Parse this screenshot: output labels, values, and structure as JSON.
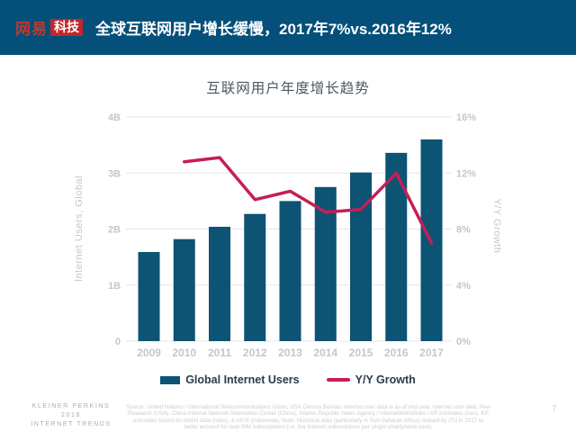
{
  "header": {
    "logo_brand": "网易",
    "logo_badge": "科技",
    "title": "全球互联网用户增长缓慢，2017年7%vs.2016年12%"
  },
  "chart_data": {
    "type": "bar",
    "title": "互联网用户年度增长趋势",
    "categories": [
      "2009",
      "2010",
      "2011",
      "2012",
      "2013",
      "2014",
      "2015",
      "2016",
      "2017"
    ],
    "series": [
      {
        "name": "Global Internet Users",
        "type": "bar",
        "axis": "left",
        "color": "#0d5374",
        "values": [
          1.59,
          1.82,
          2.04,
          2.27,
          2.5,
          2.75,
          3.01,
          3.36,
          3.6
        ]
      },
      {
        "name": "Y/Y Growth",
        "type": "line",
        "axis": "right",
        "color": "#c41f56",
        "values": [
          null,
          12.8,
          13.1,
          10.1,
          10.7,
          9.2,
          9.4,
          12.0,
          7.0
        ]
      }
    ],
    "left_axis": {
      "label": "Internet Users, Global",
      "min": 0,
      "max": 4,
      "ticks": [
        "0",
        "1B",
        "2B",
        "3B",
        "4B"
      ]
    },
    "right_axis": {
      "label": "Y/Y Growth",
      "min": 0,
      "max": 16,
      "ticks": [
        "0%",
        "4%",
        "8%",
        "12%",
        "16%"
      ]
    },
    "grid": true,
    "legend_position": "bottom"
  },
  "legend": [
    {
      "label": "Global Internet Users",
      "swatch": "bar",
      "color": "#0d5374"
    },
    {
      "label": "Y/Y Growth",
      "swatch": "line",
      "color": "#c41f56"
    }
  ],
  "footer": {
    "brand_line1": "Kleiner Perkins",
    "brand_line2": "2018",
    "brand_line3": "Internet Trends",
    "source_text": "Source: United Nations / International Telecommunications Union, USA Census Bureau. Internet user data is as of mid-year. Internet user data: Pew Research (USA), China Internet Network Information Center (China), Islamic Republic News Agency / InternetWorldStats / KP estimates (Iran). KP estimates based on IAMAI data (India), & APJII (Indonesia). Note: Historical data (particularly in Sub-Saharan Africa) revised by ITU in 2017 to better account for dual-SIM subscriptions (i.e. low Internet subscriptions per single smartphone user).",
    "page_number": "7"
  },
  "colors": {
    "header_bg": "#04507a",
    "logo_red": "#c0392b",
    "badge_bg": "#c22727",
    "badge_text": "#ffffff",
    "bar": "#0d5374",
    "line": "#c41f56",
    "grid": "#e4e7e9",
    "axis_text": "#c3c7cb",
    "chart_title_text": "#4b5865"
  }
}
